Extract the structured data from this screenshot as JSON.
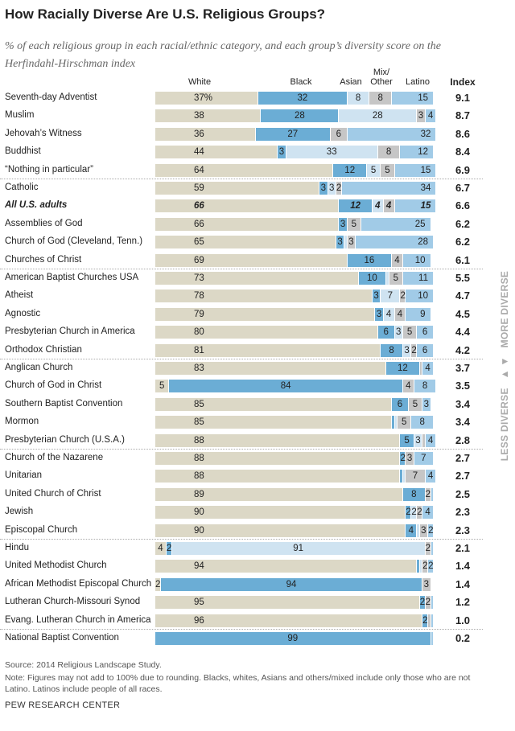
{
  "title": "How Racially Diverse Are U.S. Religious Groups?",
  "subtitle": "% of each religious group in each racial/ethnic category, and each group’s diversity score on the Herfindahl-Hirschman index",
  "side_label": {
    "more": "MORE DIVERSE",
    "arrows": "▲ ▼",
    "less": "LESS DIVERSE"
  },
  "footer": {
    "source": "Source: 2014 Religious Landscape Study.",
    "note": "Note: Figures may not add to 100% due to rounding. Blacks, whites, Asians and others/mixed include only those who are not Latino. Latinos include people of all races.",
    "brand": "PEW RESEARCH CENTER"
  },
  "chart_data": {
    "type": "stacked-bar-horizontal",
    "categories_header": [
      "White",
      "Black",
      "Asian",
      "Mix/ Other",
      "Latino"
    ],
    "index_header": "Index",
    "colors": {
      "White": "#dcd8c6",
      "Black": "#6badd5",
      "Asian": "#cfe3f1",
      "Mix/ Other": "#c6c6c6",
      "Latino": "#a1cbe7"
    },
    "first_label_suffix": "%",
    "rows": [
      {
        "name": "Seventh-day Adventist",
        "values": [
          37,
          32,
          8,
          8,
          15
        ],
        "index": "9.1"
      },
      {
        "name": "Muslim",
        "values": [
          38,
          28,
          28,
          3,
          4
        ],
        "index": "8.7"
      },
      {
        "name": "Jehovah’s Witness",
        "values": [
          36,
          27,
          0,
          6,
          32
        ],
        "index": "8.6"
      },
      {
        "name": "Buddhist",
        "values": [
          44,
          3,
          33,
          8,
          12
        ],
        "index": "8.4"
      },
      {
        "name": "“Nothing in particular”",
        "values": [
          64,
          12,
          5,
          5,
          15
        ],
        "index": "6.9"
      },
      {
        "name": "Catholic",
        "values": [
          59,
          3,
          3,
          2,
          34
        ],
        "index": "6.7"
      },
      {
        "name": "All U.S. adults",
        "values": [
          66,
          12,
          4,
          4,
          15
        ],
        "index": "6.6",
        "bold": true
      },
      {
        "name": "Assemblies of God",
        "values": [
          66,
          3,
          0,
          5,
          25
        ],
        "index": "6.2"
      },
      {
        "name": "Church of God (Cleveland, Tenn.)",
        "values": [
          65,
          3,
          1,
          3,
          28
        ],
        "index": "6.2"
      },
      {
        "name": "Churches of Christ",
        "values": [
          69,
          16,
          0,
          4,
          10
        ],
        "index": "6.1"
      },
      {
        "name": "American Baptist Churches USA",
        "values": [
          73,
          10,
          1,
          5,
          11
        ],
        "index": "5.5"
      },
      {
        "name": "Atheist",
        "values": [
          78,
          3,
          7,
          2,
          10
        ],
        "index": "4.7"
      },
      {
        "name": "Agnostic",
        "values": [
          79,
          3,
          4,
          4,
          9
        ],
        "index": "4.5"
      },
      {
        "name": "Presbyterian Church in America",
        "values": [
          80,
          6,
          3,
          5,
          6
        ],
        "index": "4.4"
      },
      {
        "name": "Orthodox Christian",
        "values": [
          81,
          8,
          3,
          2,
          6
        ],
        "index": "4.2"
      },
      {
        "name": "Anglican Church",
        "values": [
          83,
          12,
          0,
          1,
          4
        ],
        "index": "3.7"
      },
      {
        "name": "Church of God in Christ",
        "values": [
          5,
          84,
          0,
          4,
          8
        ],
        "index": "3.5"
      },
      {
        "name": "Southern Baptist Convention",
        "values": [
          85,
          6,
          0,
          5,
          3
        ],
        "index": "3.4"
      },
      {
        "name": "Mormon",
        "values": [
          85,
          1,
          1,
          5,
          8
        ],
        "index": "3.4"
      },
      {
        "name": "Presbyterian Church (U.S.A.)",
        "values": [
          88,
          5,
          3,
          1,
          4
        ],
        "index": "2.8"
      },
      {
        "name": "Church of the Nazarene",
        "values": [
          88,
          2,
          0,
          3,
          7
        ],
        "index": "2.7"
      },
      {
        "name": "Unitarian",
        "values": [
          88,
          1,
          1,
          7,
          4
        ],
        "index": "2.7"
      },
      {
        "name": "United Church of Christ",
        "values": [
          89,
          8,
          0,
          2,
          1
        ],
        "index": "2.5"
      },
      {
        "name": "Jewish",
        "values": [
          90,
          2,
          2,
          2,
          4
        ],
        "index": "2.3"
      },
      {
        "name": "Episcopal Church",
        "values": [
          90,
          4,
          1,
          3,
          2
        ],
        "index": "2.3"
      },
      {
        "name": "Hindu",
        "values": [
          4,
          2,
          91,
          2,
          1
        ],
        "index": "2.1"
      },
      {
        "name": "United Methodist Church",
        "values": [
          94,
          1,
          1,
          2,
          2
        ],
        "index": "1.4"
      },
      {
        "name": "African Methodist Episcopal Church",
        "values": [
          2,
          94,
          0,
          3,
          0
        ],
        "index": "1.4"
      },
      {
        "name": "Lutheran Church-Missouri Synod",
        "values": [
          95,
          2,
          0,
          2,
          1
        ],
        "index": "1.2"
      },
      {
        "name": "Evang. Lutheran Church in America",
        "values": [
          96,
          2,
          0,
          1,
          1
        ],
        "index": "1.0"
      },
      {
        "name": "National Baptist Convention",
        "values": [
          0,
          99,
          0,
          0,
          1
        ],
        "index": "0.2"
      }
    ]
  }
}
